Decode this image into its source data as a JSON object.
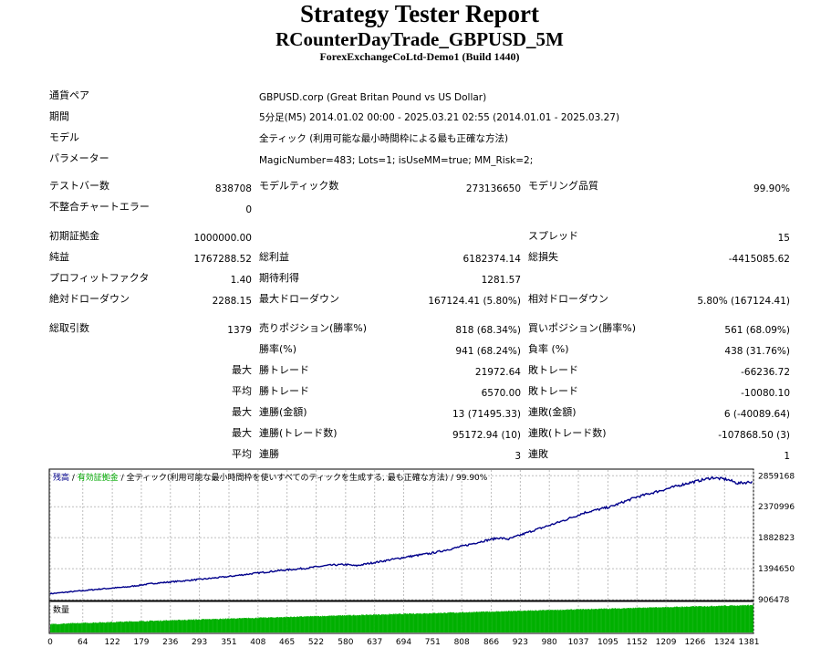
{
  "title": "Strategy Tester Report",
  "ea_name": "RCounterDayTrade_GBPUSD_5M",
  "server": "ForexExchangeCoLtd-Demo1 (Build 1440)",
  "info": {
    "symbol_label": "通貨ペア",
    "symbol_value": "GBPUSD.corp (Great Britan Pound vs US Dollar)",
    "period_label": "期間",
    "period_value": "5分足(M5) 2014.01.02 00:00 - 2025.03.21 02:55 (2014.01.01 - 2025.03.27)",
    "model_label": "モデル",
    "model_value": "全ティック (利用可能な最小時間枠による最も正確な方法)",
    "params_label": "パラメーター",
    "params_value": "MagicNumber=483; Lots=1; isUseMM=true; MM_Risk=2;"
  },
  "bars": {
    "bars_label": "テストバー数",
    "bars_value": "838708",
    "ticks_label": "モデルティック数",
    "ticks_value": "273136650",
    "quality_label": "モデリング品質",
    "quality_value": "99.90%",
    "errors_label": "不整合チャートエラー",
    "errors_value": "0"
  },
  "results": {
    "deposit_label": "初期証拠金",
    "deposit_value": "1000000.00",
    "spread_label": "スプレッド",
    "spread_value": "15",
    "netprofit_label": "純益",
    "netprofit_value": "1767288.52",
    "grossprofit_label": "総利益",
    "grossprofit_value": "6182374.14",
    "grossloss_label": "総損失",
    "grossloss_value": "-4415085.62",
    "pf_label": "プロフィットファクタ",
    "pf_value": "1.40",
    "expected_label": "期待利得",
    "expected_value": "1281.57",
    "absdd_label": "絶対ドローダウン",
    "absdd_value": "2288.15",
    "maxdd_label": "最大ドローダウン",
    "maxdd_value": "167124.41 (5.80%)",
    "reldd_label": "相対ドローダウン",
    "reldd_value": "5.80% (167124.41)"
  },
  "trades": {
    "total_label": "総取引数",
    "total_value": "1379",
    "short_label": "売りポジション(勝率%)",
    "short_value": "818 (68.34%)",
    "long_label": "買いポジション(勝率%)",
    "long_value": "561 (68.09%)",
    "win_label": "勝率(%)",
    "win_value": "941 (68.24%)",
    "loss_label": "負率 (%)",
    "loss_value": "438 (31.76%)",
    "max_prefix": "最大",
    "avg_prefix": "平均",
    "largest_win_label": "勝トレード",
    "largest_win_value": "21972.64",
    "largest_loss_label": "敗トレード",
    "largest_loss_value": "-66236.72",
    "avg_win_label": "勝トレード",
    "avg_win_value": "6570.00",
    "avg_loss_label": "敗トレード",
    "avg_loss_value": "-10080.10",
    "max_consec_wins_money_label": "連勝(金額)",
    "max_consec_wins_money_value": "13 (71495.33)",
    "max_consec_losses_money_label": "連敗(金額)",
    "max_consec_losses_money_value": "6 (-40089.64)",
    "max_consec_profit_label": "連勝(トレード数)",
    "max_consec_profit_value": "95172.94 (10)",
    "max_consec_loss_label": "連敗(トレード数)",
    "max_consec_loss_value": "-107868.50 (3)",
    "avg_consec_wins_label": "連勝",
    "avg_consec_wins_value": "3",
    "avg_consec_losses_label": "連敗",
    "avg_consec_losses_value": "1"
  },
  "chart_data": {
    "type": "line",
    "legend": {
      "balance": "残高",
      "sep1": " / ",
      "equity": "有効証拠金",
      "sep2": " / ",
      "model": "全ティック(利用可能な最小時間枠を使いすべてのティックを生成する, 最も正確な方法)",
      "quality": " / 99.90%"
    },
    "volume_label": "数量",
    "y_ticks": [
      2859168,
      2370996,
      1882823,
      1394650,
      906478
    ],
    "x_ticks": [
      0,
      64,
      122,
      179,
      236,
      293,
      351,
      408,
      465,
      522,
      580,
      637,
      694,
      751,
      808,
      866,
      923,
      980,
      1037,
      1095,
      1152,
      1209,
      1266,
      1324,
      1381
    ],
    "xlim": [
      0,
      1379
    ],
    "ylim": [
      906478,
      2950000
    ],
    "balance_keypoints": [
      [
        0,
        1000000
      ],
      [
        100,
        1075000
      ],
      [
        150,
        1105000
      ],
      [
        200,
        1160000
      ],
      [
        250,
        1195000
      ],
      [
        300,
        1230000
      ],
      [
        350,
        1270000
      ],
      [
        400,
        1320000
      ],
      [
        450,
        1365000
      ],
      [
        500,
        1400000
      ],
      [
        550,
        1450000
      ],
      [
        580,
        1460000
      ],
      [
        600,
        1440000
      ],
      [
        650,
        1510000
      ],
      [
        700,
        1580000
      ],
      [
        750,
        1640000
      ],
      [
        800,
        1730000
      ],
      [
        850,
        1830000
      ],
      [
        880,
        1880000
      ],
      [
        900,
        1860000
      ],
      [
        950,
        2000000
      ],
      [
        1000,
        2130000
      ],
      [
        1050,
        2280000
      ],
      [
        1100,
        2370000
      ],
      [
        1150,
        2520000
      ],
      [
        1200,
        2630000
      ],
      [
        1250,
        2740000
      ],
      [
        1300,
        2830000
      ],
      [
        1330,
        2800000
      ],
      [
        1350,
        2740000
      ],
      [
        1379,
        2767000
      ]
    ],
    "colors": {
      "balance": "#00008b",
      "equity": "#00aa00",
      "volume": "#00b000",
      "grid": "#bdbdbd"
    }
  }
}
